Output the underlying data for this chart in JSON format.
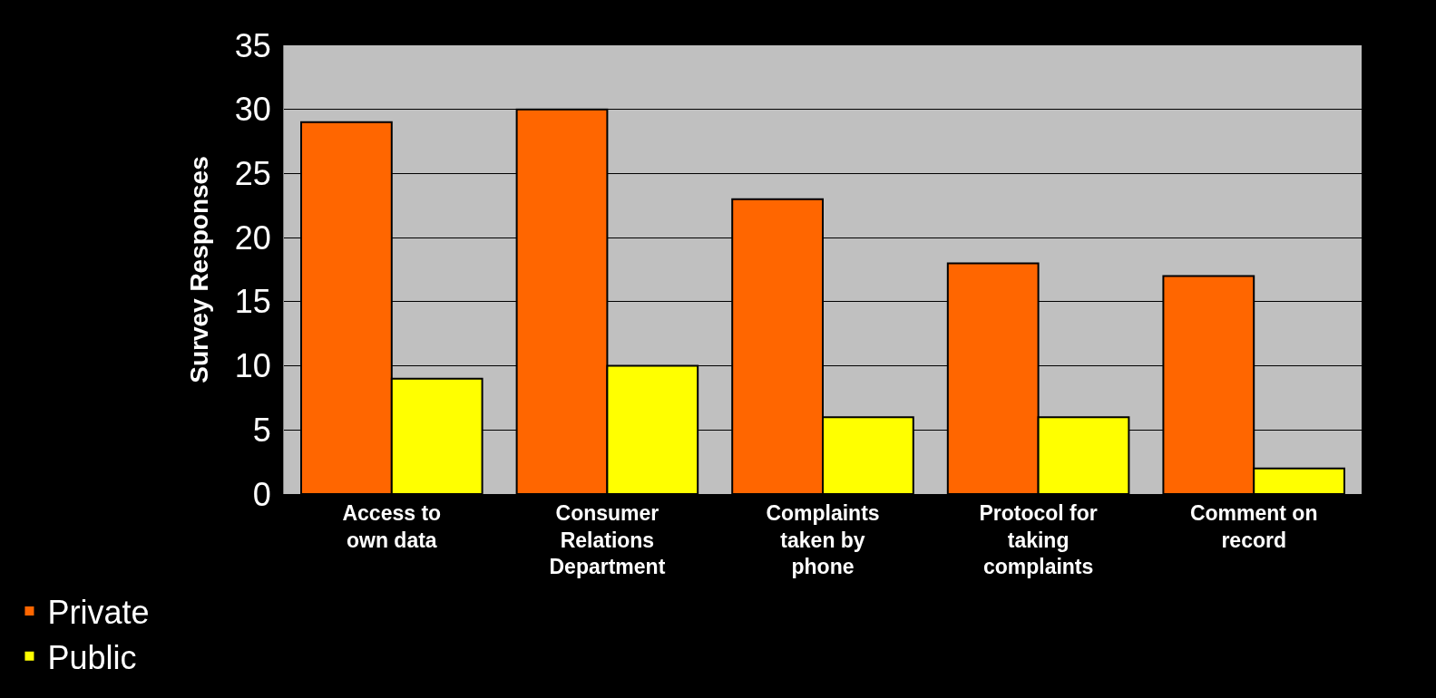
{
  "chart_data": {
    "type": "bar",
    "ylabel": "Survey Responses",
    "categories": [
      "Access to own data",
      "Consumer Relations Department",
      "Complaints taken by phone",
      "Protocol for taking complaints",
      "Comment on record"
    ],
    "series": [
      {
        "name": "Private",
        "color": "#ff6600",
        "values": [
          29,
          30,
          23,
          18,
          17
        ]
      },
      {
        "name": "Public",
        "color": "#ffff00",
        "values": [
          9,
          10,
          6,
          6,
          2
        ]
      }
    ],
    "ylim": [
      0,
      35
    ],
    "yticks": [
      0,
      5,
      10,
      15,
      20,
      25,
      30,
      35
    ],
    "grid": "y",
    "legend": "bottom left"
  }
}
